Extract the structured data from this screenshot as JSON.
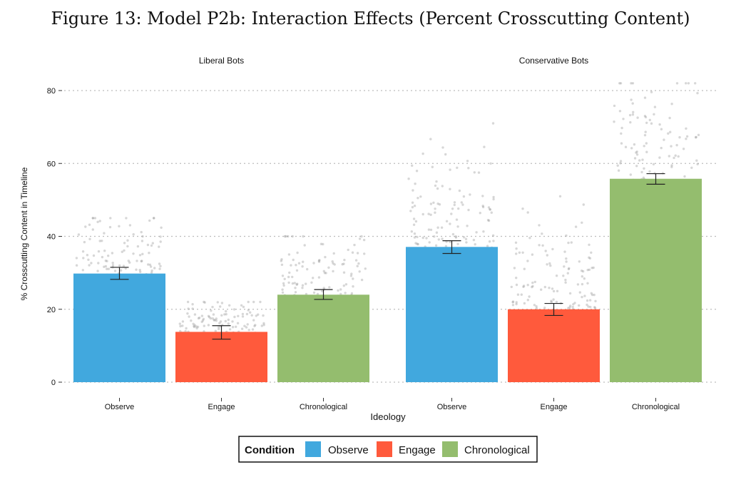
{
  "figure_title": "Figure 13: Model P2b: Interaction Effects (Percent Crosscutting Content)",
  "colors": {
    "Observe": "#41A8DE",
    "Engage": "#FF5A3C",
    "Chronological": "#94BD6E",
    "grid": "#bdbdbd",
    "points": "#8c8c8c"
  },
  "chart_data": {
    "type": "bar",
    "title": "",
    "xlabel": "Ideology",
    "ylabel": "% Crosscutting Content in Timeline",
    "ylim": [
      0,
      80
    ],
    "yticks": [
      "0",
      "20",
      "40",
      "60",
      "80"
    ],
    "grid": "horizontal dotted",
    "legend": {
      "title": "Condition",
      "entries": [
        "Observe",
        "Engage",
        "Chronological"
      ],
      "placement": "bottom"
    },
    "panels": [
      {
        "name": "Liberal Bots",
        "categories": [
          "Observe",
          "Engage",
          "Chronological"
        ],
        "values": [
          29.8,
          13.8,
          24.0
        ],
        "error_low": [
          28.2,
          11.8,
          22.7
        ],
        "error_high": [
          31.5,
          15.5,
          25.4
        ],
        "points_range": [
          [
            12,
            45
          ],
          [
            5,
            22
          ],
          [
            5,
            40
          ]
        ]
      },
      {
        "name": "Conservative Bots",
        "categories": [
          "Observe",
          "Engage",
          "Chronological"
        ],
        "values": [
          37.1,
          20.0,
          55.8
        ],
        "error_low": [
          35.3,
          18.3,
          54.3
        ],
        "error_high": [
          38.8,
          21.6,
          57.2
        ],
        "points_range": [
          [
            12,
            71
          ],
          [
            5,
            51
          ],
          [
            15,
            82
          ]
        ]
      }
    ]
  }
}
